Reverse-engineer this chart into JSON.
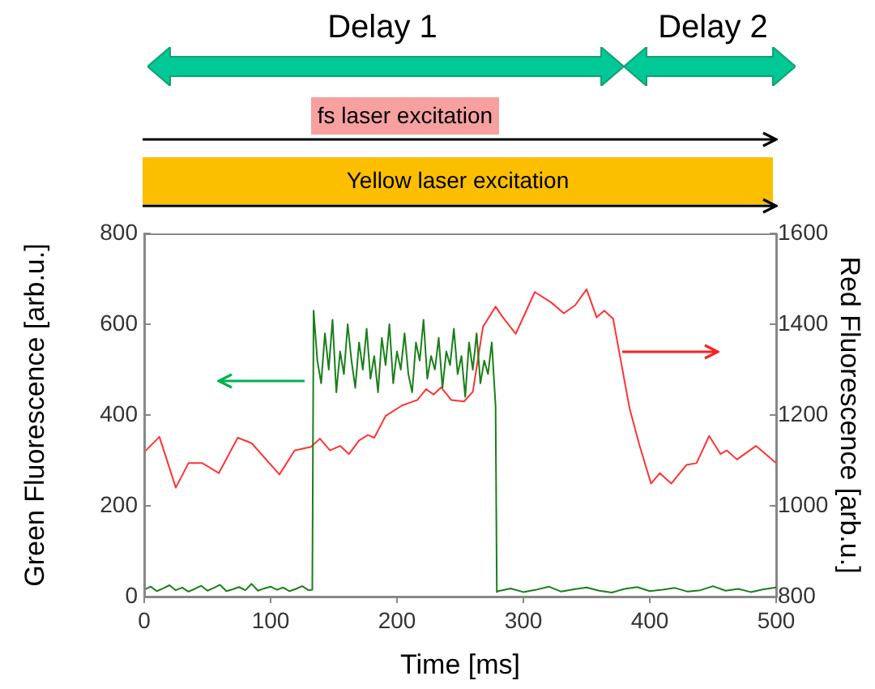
{
  "chart_data": {
    "type": "line",
    "xlabel": "Time [ms]",
    "ylabel": "Green Fluorescence [arb.u.]",
    "y2label": "Red Fluorescence [arb.u.]",
    "annotations": [
      "Delay 1",
      "Delay 2",
      "fs laser excitation",
      "Yellow laser excitation"
    ],
    "xlim": [
      0,
      500
    ],
    "xticks": [
      0,
      100,
      200,
      300,
      400,
      500
    ],
    "ylim": [
      0,
      800
    ],
    "yticks": [
      0,
      200,
      400,
      600,
      800
    ],
    "y2lim": [
      800,
      1600
    ],
    "y2ticks": [
      800,
      1000,
      1200,
      1400,
      1600
    ],
    "grid": false,
    "legend": false,
    "marker": "none",
    "line_style": "solid",
    "series": [
      {
        "color": "#1a7f1a",
        "x": [
          0,
          5,
          10,
          15,
          20,
          25,
          30,
          35,
          40,
          45,
          50,
          55,
          60,
          65,
          70,
          75,
          80,
          85,
          90,
          95,
          100,
          105,
          110,
          115,
          120,
          125,
          130,
          133,
          134,
          137,
          140,
          143,
          146,
          149,
          152,
          155,
          158,
          161,
          164,
          167,
          170,
          173,
          176,
          179,
          182,
          185,
          188,
          191,
          194,
          197,
          200,
          203,
          206,
          209,
          212,
          215,
          218,
          221,
          224,
          227,
          230,
          233,
          236,
          239,
          242,
          245,
          248,
          251,
          254,
          257,
          260,
          263,
          266,
          269,
          272,
          275,
          278,
          279,
          280,
          290,
          300,
          310,
          320,
          330,
          340,
          350,
          360,
          370,
          380,
          390,
          400,
          410,
          420,
          430,
          440,
          450,
          460,
          470,
          480,
          490,
          500
        ],
        "values": [
          15,
          22,
          12,
          18,
          25,
          14,
          20,
          11,
          17,
          24,
          13,
          19,
          26,
          12,
          16,
          21,
          14,
          28,
          13,
          18,
          22,
          15,
          20,
          12,
          17,
          23,
          14,
          15,
          630,
          520,
          470,
          580,
          500,
          610,
          450,
          540,
          490,
          600,
          520,
          460,
          560,
          500,
          590,
          480,
          530,
          450,
          570,
          510,
          600,
          470,
          540,
          500,
          580,
          490,
          450,
          560,
          520,
          610,
          480,
          530,
          500,
          570,
          460,
          540,
          510,
          590,
          490,
          530,
          440,
          560,
          500,
          580,
          470,
          520,
          490,
          560,
          420,
          10,
          12,
          18,
          10,
          15,
          22,
          11,
          16,
          20,
          13,
          9,
          17,
          21,
          12,
          15,
          19,
          11,
          14,
          23,
          13,
          17,
          10,
          16,
          20
        ]
      },
      {
        "color": "#ff3333",
        "axis": "y2",
        "x": [
          0,
          12,
          25,
          35,
          46,
          59,
          74,
          85,
          107,
          119,
          132,
          139,
          147,
          155,
          162,
          170,
          177,
          182,
          191,
          204,
          216,
          223,
          229,
          235,
          243,
          253,
          260,
          268,
          278,
          283,
          294,
          309,
          322,
          332,
          341,
          350,
          358,
          364,
          371,
          384,
          392,
          401,
          408,
          417,
          429,
          437,
          447,
          456,
          461,
          469,
          484,
          500
        ],
        "values": [
          1118,
          1152,
          1040,
          1094,
          1094,
          1072,
          1150,
          1138,
          1069,
          1122,
          1130,
          1148,
          1122,
          1132,
          1114,
          1144,
          1156,
          1150,
          1198,
          1221,
          1233,
          1257,
          1245,
          1261,
          1233,
          1230,
          1251,
          1394,
          1439,
          1418,
          1379,
          1471,
          1448,
          1424,
          1442,
          1477,
          1415,
          1430,
          1412,
          1215,
          1132,
          1049,
          1072,
          1049,
          1090,
          1094,
          1154,
          1114,
          1122,
          1102,
          1132,
          1094
        ]
      }
    ]
  }
}
